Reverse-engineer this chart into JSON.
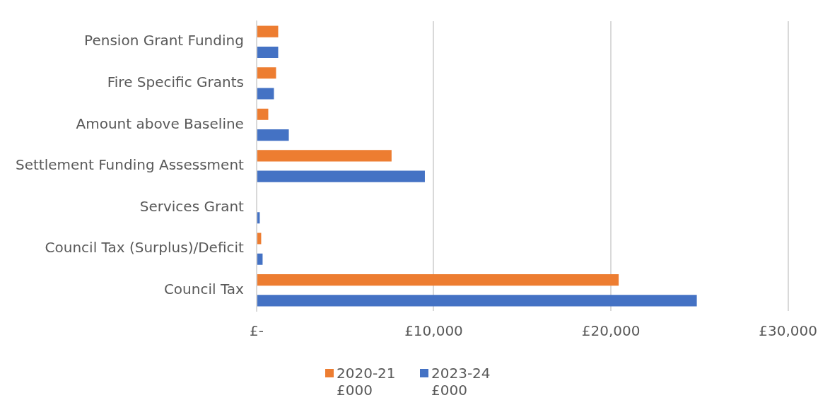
{
  "chart_data": {
    "type": "bar",
    "orientation": "horizontal",
    "categories": [
      "Pension Grant Funding",
      "Fire Specific Grants",
      "Amount above Baseline",
      "Settlement Funding Assessment",
      "Services Grant",
      "Council Tax (Surplus)/Deficit",
      "Council Tax"
    ],
    "series": [
      {
        "name": "2020-21 £000",
        "color": "#ed7d31",
        "values": [
          1220,
          1100,
          660,
          7620,
          0,
          260,
          20440
        ]
      },
      {
        "name": "2023-24 £000",
        "color": "#4472c4",
        "values": [
          1220,
          980,
          1820,
          9500,
          180,
          340,
          24850
        ]
      }
    ],
    "xlim": [
      0,
      30000
    ],
    "xticks": [
      {
        "value": 0,
        "label": "£-"
      },
      {
        "value": 10000,
        "label": "£10,000"
      },
      {
        "value": 20000,
        "label": "£20,000"
      },
      {
        "value": 30000,
        "label": "£30,000"
      }
    ],
    "grid": "x",
    "legend": "bottom"
  }
}
